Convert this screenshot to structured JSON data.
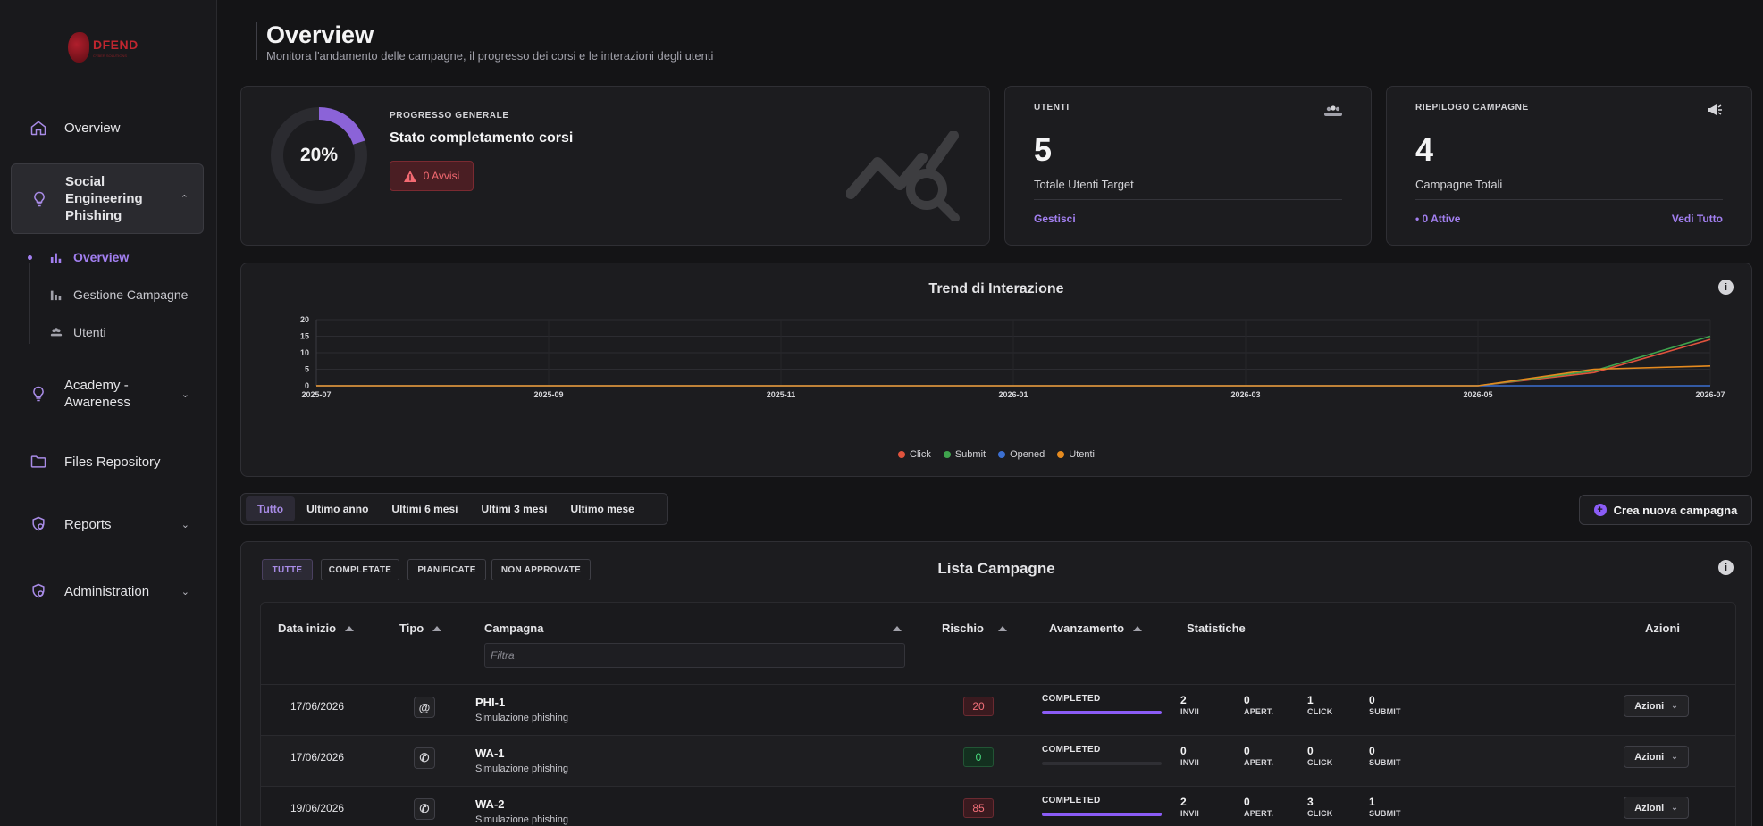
{
  "brand": {
    "logo_text": "DFEND",
    "logo_sub": "CYBER SOLUTIONS"
  },
  "sidebar": {
    "items": [
      {
        "label": "Overview",
        "icon": "home-icon"
      },
      {
        "label_lines": [
          "Social",
          "Engineering",
          "Phishing"
        ],
        "icon": "lightbulb-icon",
        "expanded": true
      },
      {
        "label_lines": [
          "Academy -",
          "Awareness"
        ],
        "icon": "lightbulb-icon"
      },
      {
        "label": "Files Repository",
        "icon": "folder-icon"
      },
      {
        "label": "Reports",
        "icon": "shield-gear-icon"
      },
      {
        "label": "Administration",
        "icon": "shield-gear-icon"
      }
    ],
    "subitems": [
      {
        "label": "Overview",
        "icon": "bar-chart-icon",
        "active": true
      },
      {
        "label": "Gestione Campagne",
        "icon": "bar-chart-icon"
      },
      {
        "label": "Utenti",
        "icon": "users-icon"
      }
    ]
  },
  "header": {
    "title": "Overview",
    "subtitle": "Monitora l'andamento delle campagne, il progresso dei corsi e le interazioni degli utenti"
  },
  "progress_card": {
    "percent": 20,
    "percent_label": "20%",
    "eyebrow": "PROGRESSO GENERALE",
    "title": "Stato completamento corsi",
    "warning_label": "0 Avvisi"
  },
  "users_card": {
    "eyebrow": "UTENTI",
    "value": "5",
    "label": "Totale Utenti Target",
    "link": "Gestisci"
  },
  "campaigns_card": {
    "eyebrow": "RIEPILOGO CAMPAGNE",
    "value": "4",
    "label": "Campagne Totali",
    "active_link": "• 0 Attive",
    "view_all": "Vedi Tutto"
  },
  "chart_data": {
    "type": "line",
    "title": "Trend di Interazione",
    "x": [
      "2025-07",
      "2025-09",
      "2025-11",
      "2026-01",
      "2026-03",
      "2026-05",
      "2026-07"
    ],
    "ylim": [
      0,
      20
    ],
    "yticks": [
      0,
      5,
      10,
      15,
      20
    ],
    "grid": true,
    "legend_position": "bottom",
    "series": [
      {
        "name": "Click",
        "color": "#e0533d",
        "points": [
          [
            "2025-07",
            0
          ],
          [
            "2026-05",
            0
          ],
          [
            "2026-06",
            4
          ],
          [
            "2026-07",
            14
          ]
        ]
      },
      {
        "name": "Submit",
        "color": "#3fa34d",
        "points": [
          [
            "2025-07",
            0
          ],
          [
            "2026-05",
            0
          ],
          [
            "2026-06",
            4.5
          ],
          [
            "2026-07",
            15
          ]
        ]
      },
      {
        "name": "Opened",
        "color": "#3b6fd1",
        "points": [
          [
            "2025-07",
            0
          ],
          [
            "2026-07",
            0
          ]
        ]
      },
      {
        "name": "Utenti",
        "color": "#e58a1f",
        "points": [
          [
            "2025-07",
            0
          ],
          [
            "2026-05",
            0
          ],
          [
            "2026-06",
            5
          ],
          [
            "2026-07",
            6
          ]
        ]
      }
    ]
  },
  "range_filters": [
    "Tutto",
    "Ultimo anno",
    "Ultimi 6 mesi",
    "Ultimi 3 mesi",
    "Ultimo mese"
  ],
  "create_button": "Crea nuova campagna",
  "campaign_list": {
    "title": "Lista Campagne",
    "filters": [
      "TUTTE",
      "COMPLETATE",
      "PIANIFICATE",
      "NON APPROVATE"
    ],
    "columns": {
      "start": "Data inizio",
      "type": "Tipo",
      "campaign": "Campagna",
      "risk": "Rischio",
      "progress": "Avanzamento",
      "stats": "Statistiche",
      "actions": "Azioni"
    },
    "filter_placeholder": "Filtra",
    "stat_labels": [
      "INVII",
      "APERT.",
      "CLICK",
      "SUBMIT"
    ],
    "actions_label": "Azioni",
    "rows": [
      {
        "date": "17/06/2026",
        "type_icon": "email-at-icon",
        "type_glyph": "@",
        "name": "PHI-1",
        "sub": "Simulazione phishing",
        "risk": "20",
        "risk_level": "high",
        "status": "COMPLETED",
        "progress": 1,
        "stats": [
          "2",
          "0",
          "1",
          "0"
        ]
      },
      {
        "date": "17/06/2026",
        "type_icon": "whatsapp-icon",
        "type_glyph": "✆",
        "name": "WA-1",
        "sub": "Simulazione phishing",
        "risk": "0",
        "risk_level": "low",
        "status": "COMPLETED",
        "progress": 0,
        "stats": [
          "0",
          "0",
          "0",
          "0"
        ]
      },
      {
        "date": "19/06/2026",
        "type_icon": "whatsapp-icon",
        "type_glyph": "✆",
        "name": "WA-2",
        "sub": "Simulazione phishing",
        "risk": "85",
        "risk_level": "high",
        "status": "COMPLETED",
        "progress": 1,
        "stats": [
          "2",
          "0",
          "3",
          "1"
        ]
      }
    ]
  }
}
